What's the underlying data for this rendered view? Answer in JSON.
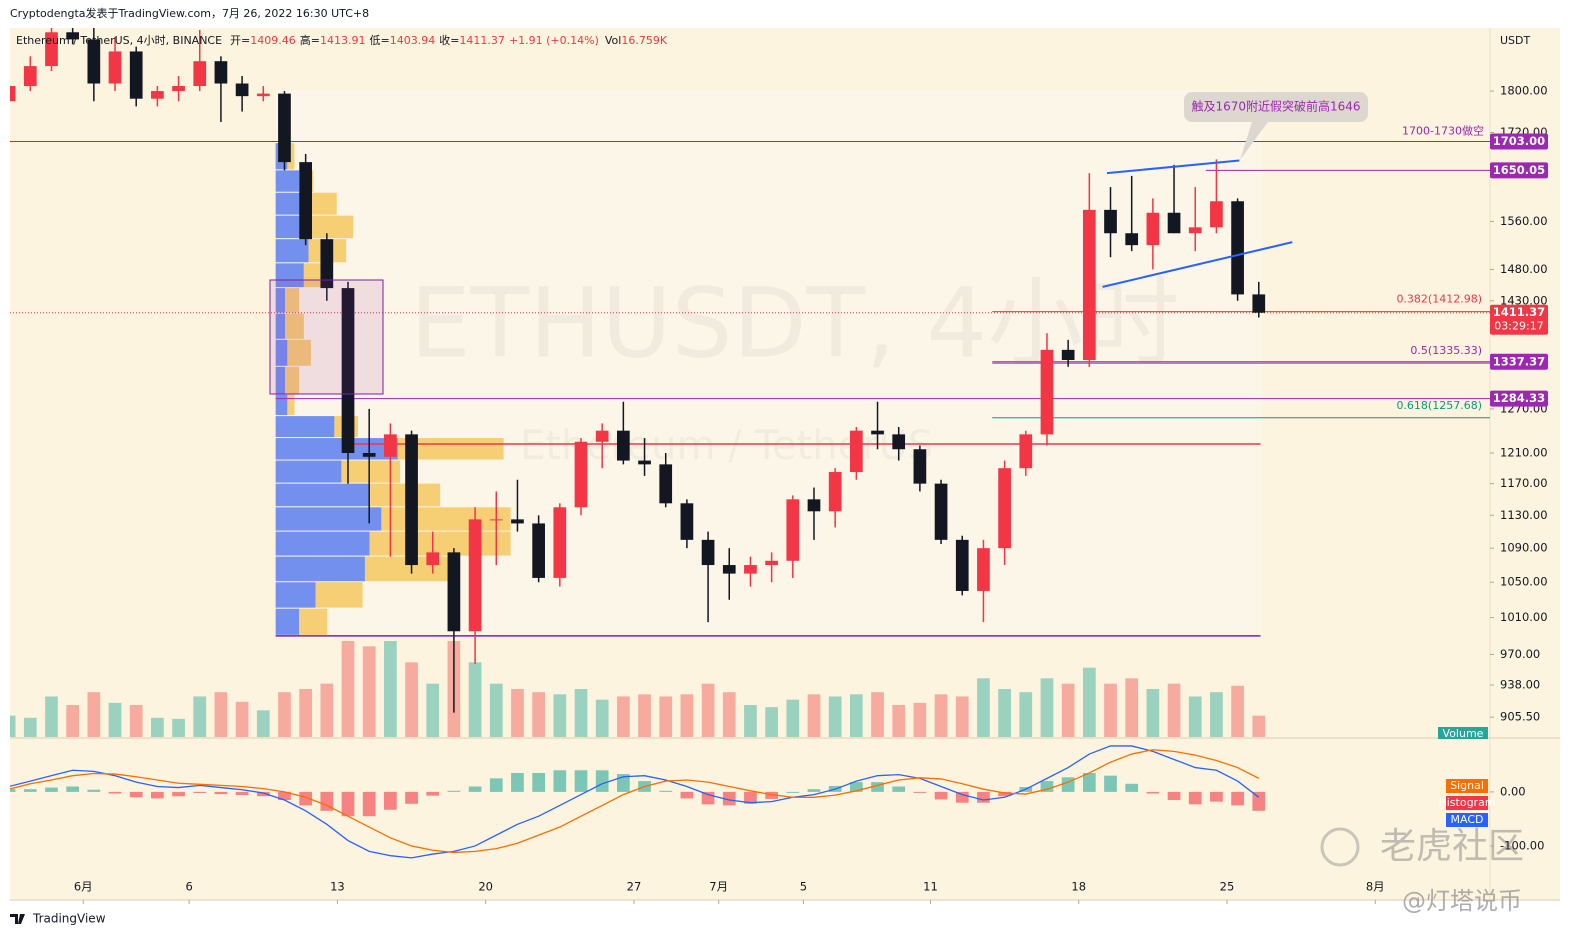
{
  "header": {
    "publisher": "Cryptodengta发表于TradingView.com，7月 26, 2022 16:30 UTC+8",
    "symbol": "Ethereum / TetherUS, 4小时, BINANCE",
    "ohlc": [
      {
        "label": "开=",
        "value": "1409.46"
      },
      {
        "label": "高=",
        "value": "1413.91"
      },
      {
        "label": "低=",
        "value": "1403.94"
      },
      {
        "label": "收=",
        "value": "1411.37"
      }
    ],
    "change": "+1.91 (+0.14%)",
    "volume_label": "Vol",
    "volume": "16.759K"
  },
  "footer": {
    "brand": "TradingView"
  },
  "watermarks": [
    "老虎社区",
    "@灯塔说币"
  ],
  "chart_data": {
    "type": "candlestick",
    "currency": "USDT",
    "watermark": "ETHUSDT, 4小时",
    "watermark_sub": "Ethereum / TetherUS",
    "up_color": "#f23645",
    "down_color": "#131722",
    "log_scale": true,
    "x": [
      "2022-05-28T00:00",
      "2022-05-29T00:00",
      "2022-05-30T00:00",
      "2022-05-31T00:00",
      "2022-06-01T00:00",
      "2022-06-02T00:00",
      "2022-06-03T00:00",
      "2022-06-04T00:00",
      "2022-06-05T00:00",
      "2022-06-06T00:00",
      "2022-06-07T00:00",
      "2022-06-08T00:00",
      "2022-06-09T00:00",
      "2022-06-10T00:00",
      "2022-06-11T00:00",
      "2022-06-12T00:00",
      "2022-06-13T00:00",
      "2022-06-14T00:00",
      "2022-06-15T00:00",
      "2022-06-16T00:00",
      "2022-06-17T00:00",
      "2022-06-18T00:00",
      "2022-06-19T00:00",
      "2022-06-20T00:00",
      "2022-06-21T00:00",
      "2022-06-22T00:00",
      "2022-06-23T00:00",
      "2022-06-24T00:00",
      "2022-06-25T00:00",
      "2022-06-26T00:00",
      "2022-06-27T00:00",
      "2022-06-28T00:00",
      "2022-06-29T00:00",
      "2022-06-30T00:00",
      "2022-07-01T00:00",
      "2022-07-02T00:00",
      "2022-07-03T00:00",
      "2022-07-04T00:00",
      "2022-07-05T00:00",
      "2022-07-06T00:00",
      "2022-07-07T00:00",
      "2022-07-08T00:00",
      "2022-07-09T00:00",
      "2022-07-10T00:00",
      "2022-07-11T00:00",
      "2022-07-12T00:00",
      "2022-07-13T00:00",
      "2022-07-14T00:00",
      "2022-07-15T00:00",
      "2022-07-16T00:00",
      "2022-07-17T00:00",
      "2022-07-18T00:00",
      "2022-07-19T00:00",
      "2022-07-20T00:00",
      "2022-07-21T00:00",
      "2022-07-22T00:00",
      "2022-07-23T00:00",
      "2022-07-24T00:00",
      "2022-07-25T00:00",
      "2022-07-26T00:00"
    ],
    "open": [
      1780,
      1810,
      1850,
      1920,
      1905,
      1815,
      1880,
      1785,
      1800,
      1810,
      1860,
      1815,
      1790,
      1795,
      1665,
      1530,
      1450,
      1210,
      1205,
      1235,
      1070,
      1085,
      995,
      1125,
      1125,
      1120,
      1055,
      1140,
      1225,
      1240,
      1200,
      1195,
      1145,
      1100,
      1070,
      1060,
      1070,
      1075,
      1150,
      1135,
      1185,
      1240,
      1235,
      1215,
      1170,
      1100,
      1040,
      1090,
      1190,
      1235,
      1355,
      1340,
      1580,
      1540,
      1520,
      1575,
      1540,
      1550,
      1595,
      1440
    ],
    "high": [
      1830,
      1870,
      1935,
      1935,
      1930,
      1910,
      1890,
      1810,
      1830,
      1925,
      1870,
      1830,
      1810,
      1800,
      1680,
      1540,
      1460,
      1270,
      1250,
      1240,
      1110,
      1090,
      1140,
      1160,
      1175,
      1130,
      1145,
      1230,
      1250,
      1280,
      1230,
      1210,
      1150,
      1110,
      1090,
      1080,
      1085,
      1155,
      1165,
      1190,
      1245,
      1280,
      1245,
      1220,
      1175,
      1105,
      1100,
      1200,
      1240,
      1380,
      1370,
      1645,
      1620,
      1640,
      1600,
      1660,
      1620,
      1670,
      1600,
      1460
    ],
    "low": [
      1765,
      1800,
      1840,
      1895,
      1780,
      1800,
      1770,
      1770,
      1780,
      1800,
      1740,
      1760,
      1780,
      1650,
      1520,
      1430,
      1170,
      1120,
      1080,
      1060,
      1060,
      910,
      960,
      1070,
      1110,
      1050,
      1045,
      1130,
      1190,
      1195,
      1180,
      1140,
      1090,
      1005,
      1030,
      1045,
      1050,
      1055,
      1100,
      1115,
      1175,
      1215,
      1200,
      1160,
      1095,
      1035,
      1005,
      1070,
      1180,
      1220,
      1330,
      1330,
      1500,
      1510,
      1480,
      1540,
      1510,
      1540,
      1430,
      1403.94
    ],
    "close": [
      1810,
      1850,
      1920,
      1905,
      1815,
      1880,
      1785,
      1800,
      1810,
      1860,
      1815,
      1790,
      1795,
      1665,
      1530,
      1450,
      1210,
      1205,
      1235,
      1070,
      1085,
      995,
      1125,
      1125,
      1120,
      1055,
      1140,
      1225,
      1240,
      1200,
      1195,
      1145,
      1100,
      1070,
      1060,
      1070,
      1075,
      1150,
      1135,
      1185,
      1240,
      1235,
      1215,
      1170,
      1100,
      1040,
      1090,
      1190,
      1235,
      1355,
      1340,
      1580,
      1540,
      1520,
      1575,
      1540,
      1550,
      1595,
      1440,
      1411.37
    ],
    "volume": [
      200,
      180,
      380,
      300,
      420,
      320,
      300,
      180,
      170,
      380,
      420,
      330,
      250,
      420,
      450,
      500,
      900,
      850,
      900,
      700,
      500,
      900,
      700,
      500,
      450,
      420,
      400,
      450,
      350,
      380,
      400,
      380,
      400,
      500,
      420,
      300,
      280,
      350,
      400,
      380,
      400,
      420,
      300,
      320,
      400,
      380,
      550,
      450,
      420,
      550,
      500,
      650,
      500,
      550,
      450,
      500,
      380,
      420,
      480,
      200
    ],
    "xlim": [
      "2022-05-28T13:00",
      "2022-08-06T10:00"
    ],
    "xticks": [
      {
        "value": "2022-06-01T00:00",
        "label": "6月"
      },
      {
        "value": "2022-06-06T00:00",
        "label": "6"
      },
      {
        "value": "2022-06-13T00:00",
        "label": "13"
      },
      {
        "value": "2022-06-20T00:00",
        "label": "20"
      },
      {
        "value": "2022-06-27T00:00",
        "label": "27"
      },
      {
        "value": "2022-07-01T00:00",
        "label": "7月"
      },
      {
        "value": "2022-07-05T00:00",
        "label": "5"
      },
      {
        "value": "2022-07-11T00:00",
        "label": "11"
      },
      {
        "value": "2022-07-18T00:00",
        "label": "18"
      },
      {
        "value": "2022-07-25T00:00",
        "label": "25"
      },
      {
        "value": "2022-08-01T00:00",
        "label": "8月"
      }
    ],
    "ylim": [
      886,
      1929
    ],
    "yticks": [
      {
        "value": 1800,
        "label": "1800.00"
      },
      {
        "value": 1720,
        "label": "1720.00"
      },
      {
        "value": 1560,
        "label": "1560.00"
      },
      {
        "value": 1480,
        "label": "1480.00"
      },
      {
        "value": 1430,
        "label": "1430.00"
      },
      {
        "value": 1270,
        "label": "1270.00"
      },
      {
        "value": 1210,
        "label": "1210.00"
      },
      {
        "value": 1170,
        "label": "1170.00"
      },
      {
        "value": 1130,
        "label": "1130.00"
      },
      {
        "value": 1090,
        "label": "1090.00"
      },
      {
        "value": 1050,
        "label": "1050.00"
      },
      {
        "value": 1010,
        "label": "1010.00"
      },
      {
        "value": 970,
        "label": "970.00"
      },
      {
        "value": 938,
        "label": "938.00"
      },
      {
        "value": 905.5,
        "label": "905.50"
      }
    ],
    "levels": [
      {
        "value": 1703,
        "label": "1703.00",
        "color": "#9c27b0",
        "note": "1700-1730做空"
      },
      {
        "value": 1650.05,
        "label": "1650.05",
        "color": "#9c27b0",
        "start": "2022-07-24T00:00"
      },
      {
        "value": 1411.37,
        "label": "1411.37",
        "color": "#f23645",
        "countdown": "03:29:17",
        "dotted": true
      },
      {
        "value": 1337.37,
        "label": "1337.37",
        "color": "#9c27b0",
        "start": "2022-07-13T22:00"
      },
      {
        "value": 1284.33,
        "label": "1284.33",
        "color": "#9c27b0",
        "start": "2022-06-10T02:00"
      }
    ],
    "fib": [
      {
        "value": 1412.98,
        "label": "0.382(1412.98)",
        "color": "#f23645",
        "start": "2022-07-13T22:00"
      },
      {
        "value": 1335.33,
        "label": "0.5(1335.33)",
        "color": "#9c27b0",
        "start": "2022-07-13T22:00"
      },
      {
        "value": 1257.68,
        "label": "0.618(1257.68)",
        "color": "#089981",
        "start": "2022-07-13T22:00"
      }
    ],
    "lines": [
      {
        "value": 1222,
        "color": "#f23645",
        "start": "2022-06-13T12:00",
        "end": "2022-07-26T14:00"
      },
      {
        "value": 990,
        "color": "#7b1fa2",
        "start": "2022-06-10T02:00",
        "end": "2022-07-26T14:00"
      }
    ],
    "trendlines": [
      {
        "color": "#2962ff",
        "x": [
          "2022-07-19T08:00",
          "2022-07-25T14:00"
        ],
        "y": [
          1645,
          1668
        ]
      },
      {
        "color": "#2962ff",
        "x": [
          "2022-07-19T03:00",
          "2022-07-28T02:00"
        ],
        "y": [
          1452,
          1525
        ]
      }
    ],
    "callout": "触及1670附近假突破前高1646",
    "volume_profile": {
      "start": "2022-06-10T02:00",
      "up_color": "#5b7ef0",
      "down_color": "#f5c85f",
      "bins": [
        990,
        1020,
        1050,
        1080,
        1110,
        1140,
        1170,
        1200,
        1230,
        1260,
        1290,
        1330,
        1370,
        1410,
        1450,
        1490,
        1530,
        1570,
        1610,
        1650,
        1700
      ],
      "up": [
        10,
        17,
        38,
        40,
        45,
        40,
        28,
        52,
        25,
        5,
        4,
        5,
        4,
        4,
        12,
        14,
        15,
        14,
        10,
        5
      ],
      "down": [
        12,
        20,
        40,
        60,
        55,
        30,
        25,
        45,
        10,
        3,
        6,
        10,
        8,
        6,
        8,
        16,
        18,
        12,
        6,
        3
      ]
    },
    "volume_pane": {
      "label": "Volume",
      "ylim": [
        0,
        1500
      ],
      "up_color": "#26a69a",
      "down_color": "#ef5350"
    },
    "macd": {
      "ylim": [
        -200,
        96
      ],
      "yticks": [
        {
          "value": 0,
          "label": "0.00"
        },
        {
          "value": -100,
          "label": "-100.00"
        }
      ],
      "series": [
        {
          "name": "MACD",
          "color": "#2962ff",
          "values": [
            10,
            20,
            30,
            40,
            38,
            30,
            18,
            10,
            8,
            12,
            8,
            4,
            -2,
            -15,
            -35,
            -60,
            -90,
            -110,
            -118,
            -122,
            -115,
            -110,
            -100,
            -80,
            -60,
            -45,
            -25,
            -5,
            15,
            28,
            30,
            22,
            10,
            -5,
            -15,
            -20,
            -18,
            -10,
            -5,
            5,
            20,
            30,
            32,
            25,
            10,
            -5,
            -15,
            -10,
            5,
            25,
            45,
            70,
            85,
            85,
            75,
            60,
            45,
            40,
            20,
            -10
          ]
        },
        {
          "name": "Signal",
          "color": "#ff6d00",
          "values": [
            5,
            15,
            22,
            30,
            34,
            33,
            28,
            22,
            16,
            14,
            12,
            10,
            6,
            0,
            -10,
            -25,
            -45,
            -65,
            -85,
            -100,
            -108,
            -112,
            -110,
            -105,
            -95,
            -80,
            -65,
            -45,
            -25,
            -5,
            10,
            20,
            22,
            18,
            10,
            2,
            -5,
            -10,
            -10,
            -6,
            2,
            12,
            22,
            26,
            24,
            15,
            5,
            -2,
            -4,
            5,
            18,
            35,
            55,
            70,
            78,
            75,
            68,
            58,
            45,
            25
          ]
        }
      ],
      "histogram": {
        "name": "Histogram",
        "color": "#f23645",
        "up_color": "#26a69a"
      }
    }
  }
}
